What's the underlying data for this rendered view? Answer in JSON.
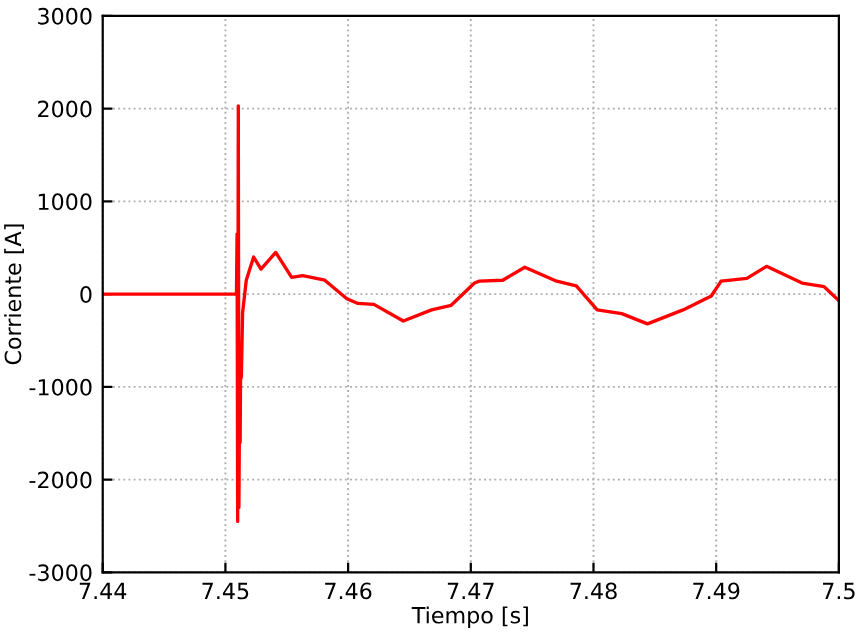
{
  "chart_data": {
    "type": "line",
    "xlabel": "Tiempo [s]",
    "ylabel": "Corriente [A]",
    "xlim": [
      7.44,
      7.5
    ],
    "ylim": [
      -3000,
      3000
    ],
    "xticks": [
      7.44,
      7.45,
      7.46,
      7.47,
      7.48,
      7.49,
      {
        "value": 7.5,
        "label": "7.5"
      }
    ],
    "yticks": [
      -3000,
      -2000,
      -1000,
      0,
      1000,
      2000,
      3000
    ],
    "grid": true,
    "line_style": "solid",
    "marker": "none",
    "series": [
      {
        "color": "#ff0000",
        "x": [
          7.44,
          7.4509,
          7.45095,
          7.451,
          7.45105,
          7.4511,
          7.45115,
          7.4512,
          7.45125,
          7.4513,
          7.4514,
          7.4517,
          7.4523,
          7.4529,
          7.4541,
          7.4554,
          7.4563,
          7.4581,
          7.4599,
          7.4608,
          7.4621,
          7.4645,
          7.4668,
          7.4684,
          7.4703,
          7.4707,
          7.4726,
          7.4744,
          7.477,
          7.4786,
          7.4803,
          7.4823,
          7.4844,
          7.4873,
          7.4896,
          7.4904,
          7.4925,
          7.4941,
          7.497,
          7.4988,
          7.5
        ],
        "values": [
          0,
          0,
          650,
          -2450,
          2030,
          -2300,
          -1200,
          -1600,
          -600,
          -900,
          -200,
          150,
          400,
          270,
          450,
          180,
          200,
          150,
          -50,
          -100,
          -110,
          -290,
          -170,
          -120,
          120,
          140,
          150,
          290,
          140,
          90,
          -170,
          -210,
          -320,
          -170,
          -20,
          140,
          170,
          300,
          120,
          80,
          -70
        ]
      }
    ]
  }
}
